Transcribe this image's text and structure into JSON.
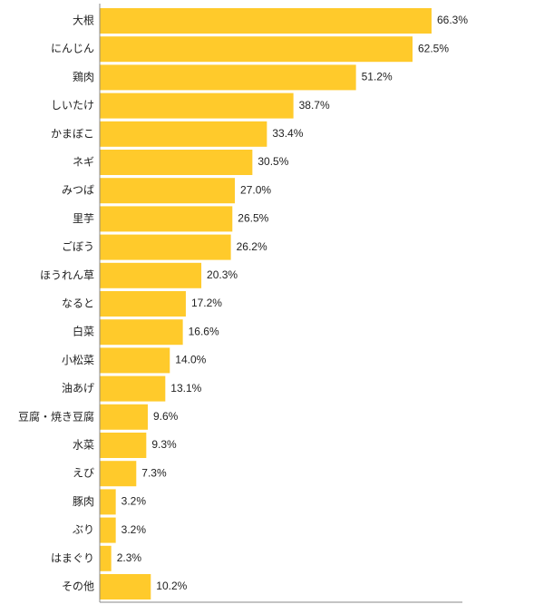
{
  "chart_data": {
    "type": "bar",
    "orientation": "horizontal",
    "categories": [
      "大根",
      "にんじん",
      "鶏肉",
      "しいたけ",
      "かまぼこ",
      "ネギ",
      "みつば",
      "里芋",
      "ごぼう",
      "ほうれん草",
      "なると",
      "白菜",
      "小松菜",
      "油あげ",
      "豆腐・焼き豆腐",
      "水菜",
      "えび",
      "豚肉",
      "ぶり",
      "はまぐり",
      "その他"
    ],
    "values": [
      66.3,
      62.5,
      51.2,
      38.7,
      33.4,
      30.5,
      27.0,
      26.5,
      26.2,
      20.3,
      17.2,
      16.6,
      14.0,
      13.1,
      9.6,
      9.3,
      7.3,
      3.2,
      3.2,
      2.3,
      10.2
    ],
    "value_labels": [
      "66.3%",
      "62.5%",
      "51.2%",
      "38.7%",
      "33.4%",
      "30.5%",
      "27.0%",
      "26.5%",
      "26.2%",
      "20.3%",
      "17.2%",
      "16.6%",
      "14.0%",
      "13.1%",
      "9.6%",
      "9.3%",
      "7.3%",
      "3.2%",
      "3.2%",
      "2.3%",
      "10.2%"
    ],
    "unit": "%",
    "xlim": [
      0,
      100
    ],
    "grid": false,
    "bar_color": "#ffca2b"
  }
}
